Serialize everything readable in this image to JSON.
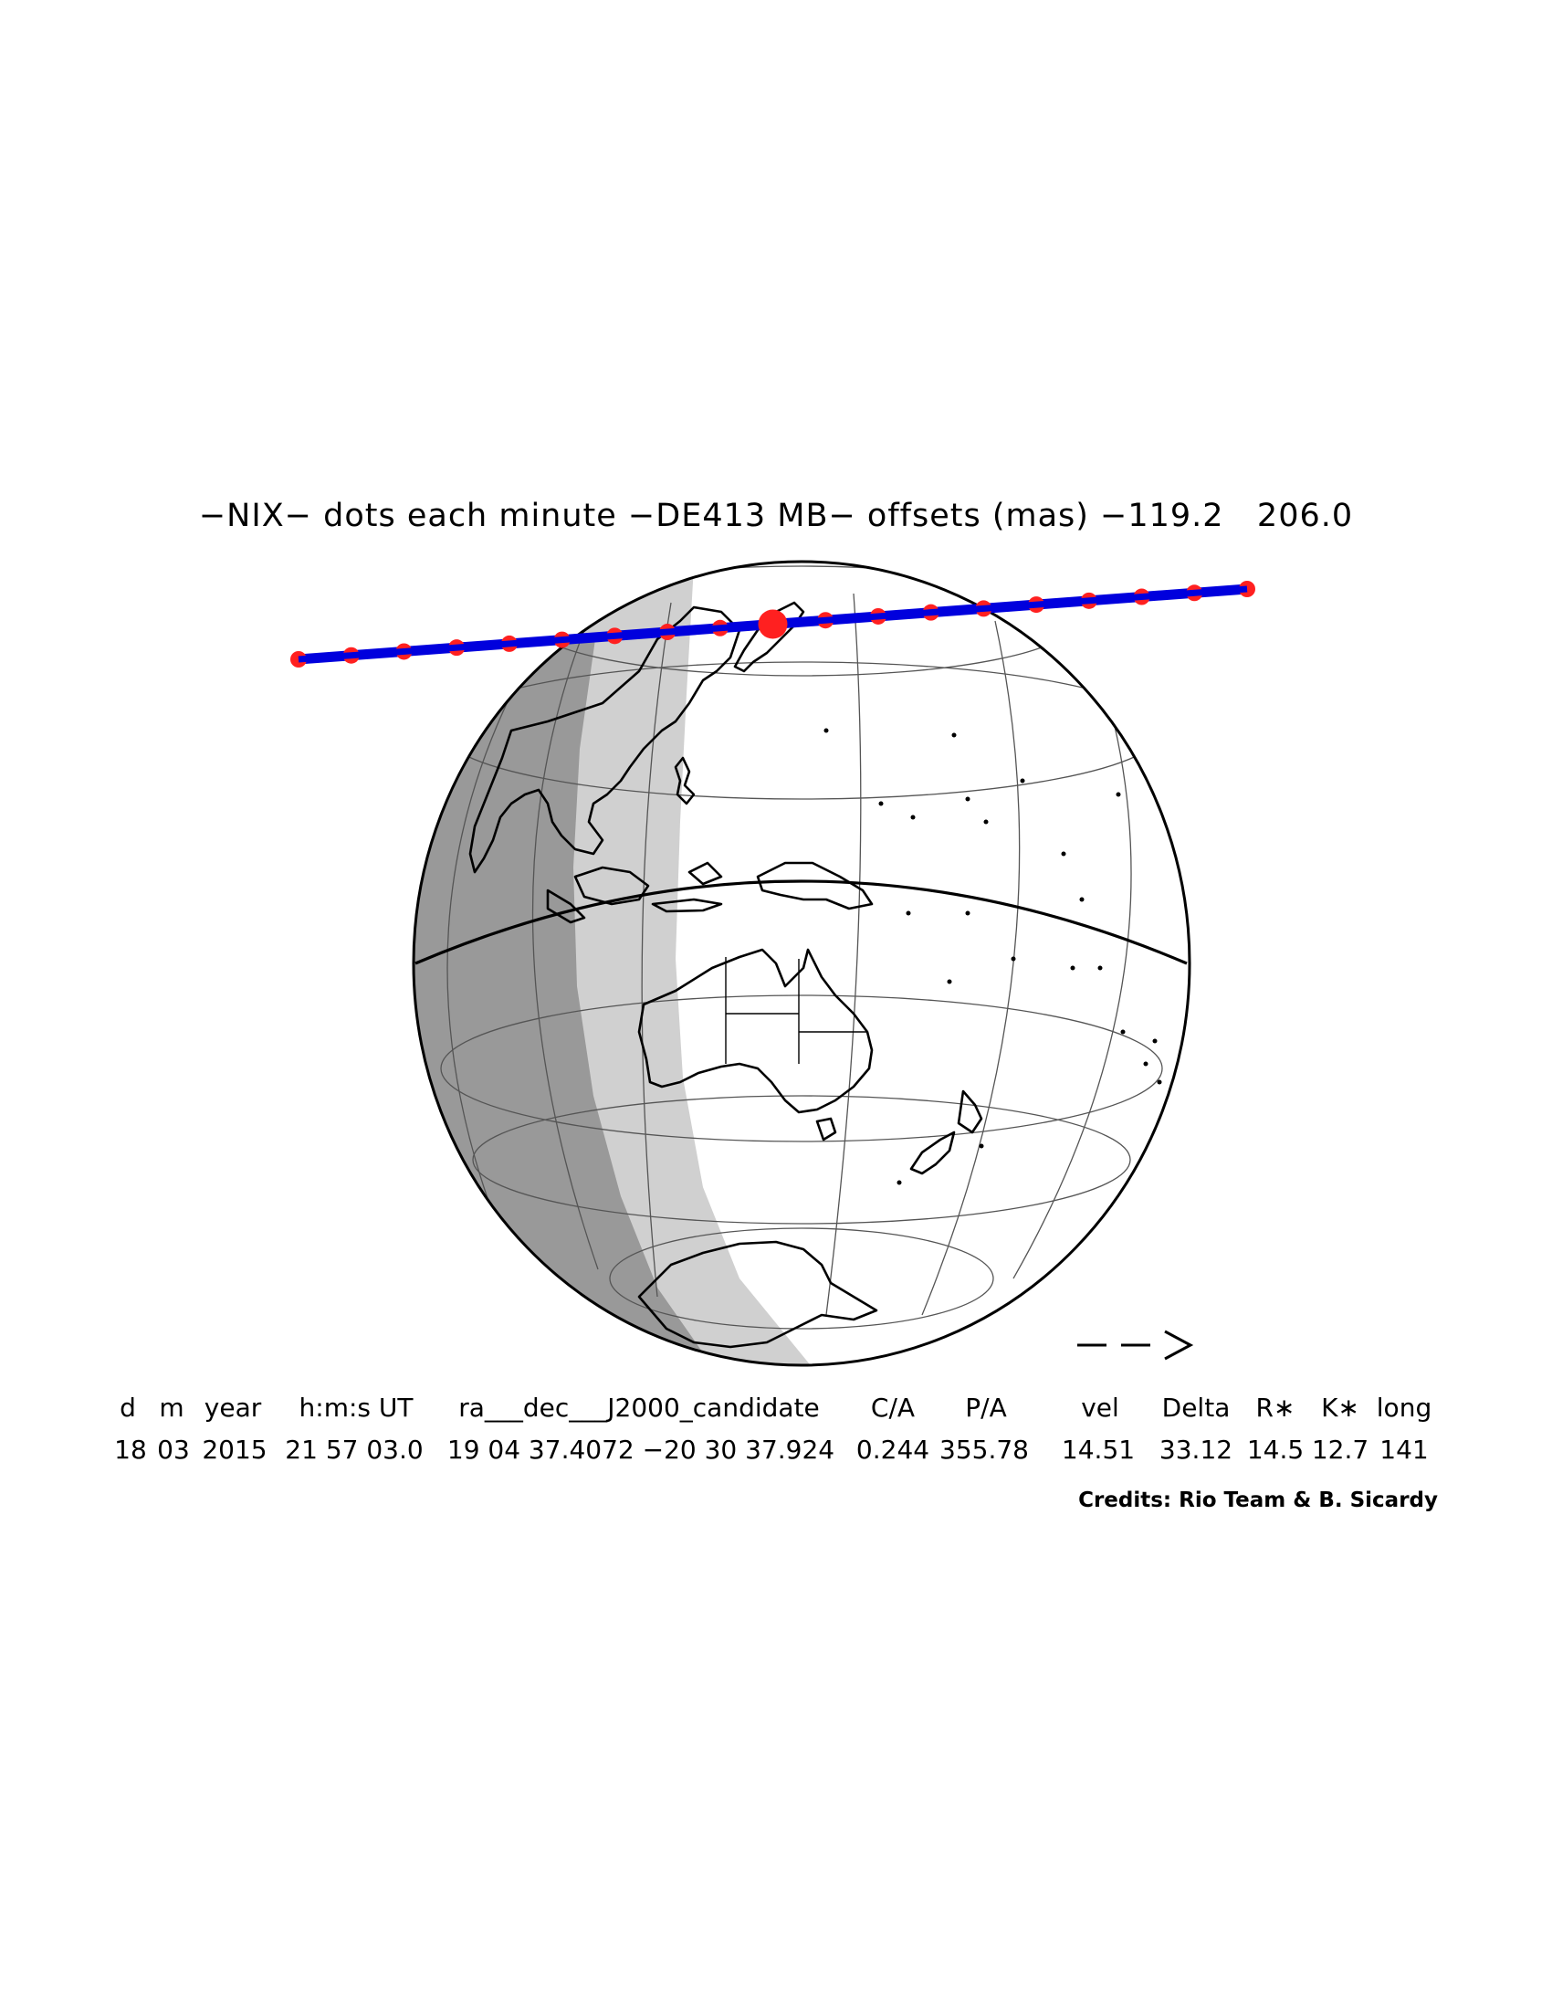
{
  "title": "−NIX− dots each minute −DE413 MB− offsets (mas) −119.2   206.0",
  "direction_arrow": "— — >",
  "table": {
    "headers": [
      "d",
      "m",
      "year",
      "h:m:s UT",
      "ra___dec___J2000_candidate",
      "C/A",
      "P/A",
      "vel",
      "Delta",
      "R∗",
      "K∗",
      "long"
    ],
    "values": [
      "18",
      "03",
      "2015",
      "21 57 03.0",
      "19 04 37.4072 −20 30 37.924",
      "0.244",
      "355.78",
      "14.51",
      "33.12",
      "14.5",
      "12.7",
      "141"
    ]
  },
  "credits": "Credits: Rio Team & B. Sicardy",
  "colors": {
    "path_line": "#0000dd",
    "path_dots": "#ff2020",
    "night_shadow": "#999999",
    "twilight_shadow": "#d0d0d0",
    "land_outline": "#000000",
    "grid": "#555555"
  }
}
